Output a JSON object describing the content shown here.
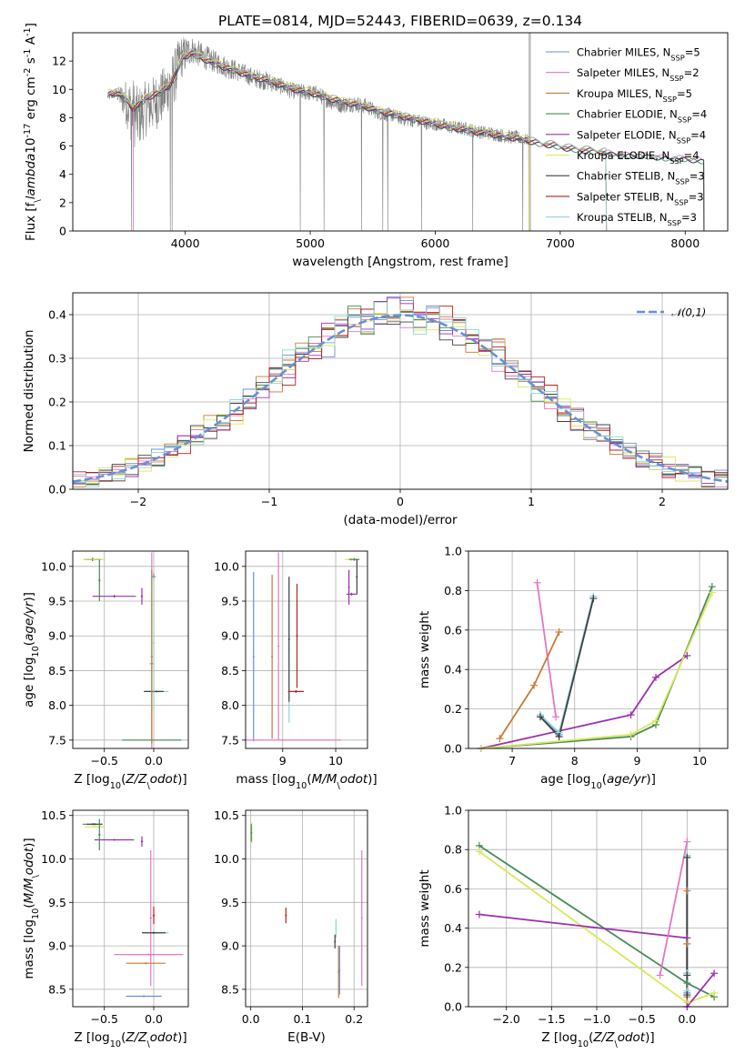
{
  "chart_data": [
    {
      "id": "spectrum",
      "type": "line",
      "title": "PLATE=0814, MJD=52443, FIBERID=0639, z=0.134",
      "xlabel": "wavelength [Angstrom, rest frame]",
      "ylabel": "Flux [f$_\\lambda$10$^{-17}$ erg cm$^{-2}$ s$^{-1}$ A$^{-1}$]",
      "xlim": [
        3100,
        8340
      ],
      "ylim": [
        0,
        14
      ],
      "xticks": [
        4000,
        5000,
        6000,
        7000,
        8000
      ],
      "yticks": [
        0,
        2,
        4,
        6,
        8,
        10,
        12
      ],
      "grid": false,
      "legend_position": "upper right",
      "observed": {
        "color": "#808080",
        "x": [
          3380,
          3450,
          3520,
          3580,
          3620,
          3680,
          3750,
          3820,
          3880,
          3920,
          3960,
          4050,
          4150,
          4250,
          4350,
          4450,
          4550,
          4650,
          4750,
          4850,
          4950,
          5050,
          5150,
          5250,
          5350,
          5450,
          5550,
          5650,
          5750,
          5850,
          5950,
          6050,
          6150,
          6250,
          6350,
          6450,
          6550,
          6650,
          6750
        ],
        "y": [
          9.5,
          9.7,
          9.2,
          8.4,
          8.0,
          8.6,
          9.0,
          9.5,
          10.5,
          11.0,
          12.2,
          12.8,
          12.3,
          11.9,
          11.5,
          11.2,
          10.8,
          10.6,
          10.3,
          9.9,
          9.8,
          9.7,
          9.2,
          8.9,
          9.0,
          8.8,
          8.3,
          8.2,
          7.9,
          7.8,
          7.6,
          7.5,
          7.3,
          7.2,
          7.0,
          6.9,
          6.7,
          6.6,
          6.4
        ],
        "noise": [
          0.35,
          0.35,
          1.5,
          2.5,
          2.2,
          2.0,
          2.0,
          2.0,
          1.8,
          2.0,
          1.6,
          1.0,
          0.9,
          0.8,
          0.8,
          0.7,
          0.7,
          0.7,
          0.6,
          0.6,
          0.6,
          0.6,
          0.6,
          0.6,
          0.6,
          0.6,
          0.5,
          0.5,
          0.5,
          0.5,
          0.5,
          0.5,
          0.5,
          0.5,
          0.5,
          0.5,
          0.5,
          0.5,
          0.4
        ],
        "drops": [
          3570,
          3880,
          3895,
          4920,
          5110,
          5410,
          5580,
          5620,
          5890,
          6300,
          6700
        ],
        "spike_x": 6750
      },
      "model_x": [
        3380,
        3450,
        3520,
        3580,
        3620,
        3700,
        3800,
        3880,
        3930,
        3980,
        4050,
        4150,
        4250,
        4350,
        4450,
        4550,
        4650,
        4750,
        4850,
        4950,
        5050,
        5150,
        5250,
        5350,
        5450,
        5550,
        5650,
        5750,
        5850,
        5950,
        6050,
        6150,
        6250,
        6350,
        6450,
        6550,
        6650,
        6750,
        6850,
        6950,
        7050,
        7150,
        7250,
        7350,
        7450,
        7550,
        7650,
        7750,
        7850,
        7950,
        8050,
        8150
      ],
      "model_y": [
        9.7,
        9.8,
        9.4,
        8.7,
        8.9,
        9.5,
        9.8,
        10.4,
        11.3,
        12.3,
        12.6,
        12.2,
        11.8,
        11.5,
        11.2,
        10.9,
        10.7,
        10.4,
        10.1,
        9.9,
        9.7,
        9.4,
        9.2,
        9.0,
        8.8,
        8.5,
        8.3,
        8.1,
        7.9,
        7.7,
        7.5,
        7.3,
        7.2,
        7.0,
        6.9,
        6.7,
        6.6,
        6.4,
        6.2,
        6.1,
        5.9,
        5.8,
        5.7,
        5.6,
        5.5,
        5.4,
        5.4,
        5.3,
        5.2,
        5.2,
        5.1,
        5.0
      ],
      "model_end_x": [
        8150,
        8150,
        7370,
        8150,
        6750,
        6750,
        8150,
        7370,
        7370
      ],
      "series": [
        {
          "name": "Chabrier MILES, N$_{SSP}$=5",
          "color": "#6b8fd6"
        },
        {
          "name": "Salpeter MILES, N$_{SSP}$=2",
          "color": "#e377c2"
        },
        {
          "name": "Kroupa MILES, N$_{SSP}$=5",
          "color": "#c87a34"
        },
        {
          "name": "Chabrier ELODIE, N$_{SSP}$=4",
          "color": "#4a8a5a"
        },
        {
          "name": "Salpeter ELODIE, N$_{SSP}$=4",
          "color": "#9b30b0"
        },
        {
          "name": "Kroupa ELODIE, N$_{SSP}$=4",
          "color": "#d9e85a"
        },
        {
          "name": "Chabrier STELIB, N$_{SSP}$=3",
          "color": "#404040"
        },
        {
          "name": "Salpeter STELIB, N$_{SSP}$=3",
          "color": "#b22222"
        },
        {
          "name": "Kroupa STELIB, N$_{SSP}$=3",
          "color": "#8fd6d9"
        }
      ]
    },
    {
      "id": "residuals",
      "type": "line",
      "xlabel": "(data-model)/error",
      "ylabel": "Normed distribution",
      "xlim": [
        -2.5,
        2.5
      ],
      "ylim": [
        0,
        0.45
      ],
      "xticks": [
        -2,
        -1,
        0,
        1,
        2
      ],
      "yticks": [
        0.0,
        0.1,
        0.2,
        0.3,
        0.4
      ],
      "grid": true,
      "legend_position": "upper right",
      "gaussian": {
        "name": "$\\mathcal{N}(0,1)$",
        "color": "#6a8fd8"
      },
      "bin_width": 0.1
    },
    {
      "id": "age-Z",
      "type": "scatter",
      "xlabel": "Z [log$_{10}$($Z/Z_\\odot$)]",
      "ylabel": "age  [log$_{10}$($age/yr$)]",
      "xlim": [
        -0.82,
        0.35
      ],
      "ylim": [
        7.38,
        10.22
      ],
      "xticks": [
        -0.5,
        0.0
      ],
      "yticks": [
        7.5,
        8.0,
        8.5,
        9.0,
        9.5,
        10.0
      ],
      "grid": true,
      "points": [
        {
          "s": 3,
          "x": -0.02,
          "y": 7.5,
          "xerr": 0.3,
          "yerr": 0.02
        },
        {
          "s": 1,
          "x": -0.02,
          "y": 8.6,
          "xerr": 0.02,
          "yerr": 1.6
        },
        {
          "s": 0,
          "x": 0.0,
          "y": 9.85,
          "xerr": 0.02,
          "yerr": 0.05
        },
        {
          "s": 3,
          "x": -0.62,
          "y": 10.1,
          "xerr": 0.09,
          "yerr": 0.02
        },
        {
          "s": 6,
          "x": -0.62,
          "y": 10.1,
          "xerr": 0.06,
          "yerr": 0.02
        },
        {
          "s": 5,
          "x": -0.6,
          "y": 10.1,
          "xerr": 0.11,
          "yerr": 0.02
        },
        {
          "s": 4,
          "x": -0.4,
          "y": 9.57,
          "xerr": 0.22,
          "yerr": 0.02
        },
        {
          "s": 4,
          "x": -0.12,
          "y": 9.57,
          "xerr": 0.01,
          "yerr": 0.12
        },
        {
          "s": 3,
          "x": -0.55,
          "y": 9.8,
          "xerr": 0.01,
          "yerr": 0.3
        },
        {
          "s": 8,
          "x": 0.03,
          "y": 8.2,
          "xerr": 0.12,
          "yerr": 0.02
        },
        {
          "s": 6,
          "x": 0.0,
          "y": 8.2,
          "xerr": 0.1,
          "yerr": 0.02
        },
        {
          "s": 8,
          "x": 0.0,
          "y": 8.9,
          "xerr": 0.01,
          "yerr": 0.95
        },
        {
          "s": 2,
          "x": -0.02,
          "y": 8.7,
          "xerr": 0.01,
          "yerr": 1.25
        }
      ]
    },
    {
      "id": "age-mass",
      "type": "scatter",
      "xlabel": "mass [log$_{10}$($M/M_\\odot$)]",
      "ylabel": "",
      "xlim": [
        8.3,
        10.6
      ],
      "ylim": [
        7.38,
        10.22
      ],
      "xticks": [
        9,
        10
      ],
      "yticks": [
        7.5,
        8.0,
        8.5,
        9.0,
        9.5,
        10.0
      ],
      "grid": true,
      "points": [
        {
          "s": 0,
          "x": 8.45,
          "y": 8.7,
          "xerr": 0.01,
          "yerr": 1.22
        },
        {
          "s": 2,
          "x": 8.8,
          "y": 8.7,
          "xerr": 0.01,
          "yerr": 1.18
        },
        {
          "s": 1,
          "x": 8.92,
          "y": 8.85,
          "xerr": 0.01,
          "yerr": 1.35
        },
        {
          "s": 8,
          "x": 9.12,
          "y": 8.8,
          "xerr": 0.01,
          "yerr": 1.05
        },
        {
          "s": 6,
          "x": 9.12,
          "y": 8.95,
          "xerr": 0.01,
          "yerr": 0.9
        },
        {
          "s": 7,
          "x": 9.25,
          "y": 8.2,
          "xerr": 0.15,
          "yerr": 0.02
        },
        {
          "s": 7,
          "x": 9.27,
          "y": 9.0,
          "xerr": 0.01,
          "yerr": 0.75
        },
        {
          "s": 5,
          "x": 10.3,
          "y": 10.1,
          "xerr": 0.13,
          "yerr": 0.02
        },
        {
          "s": 3,
          "x": 10.35,
          "y": 10.1,
          "xerr": 0.1,
          "yerr": 0.02
        },
        {
          "s": 6,
          "x": 10.4,
          "y": 9.85,
          "xerr": 0.01,
          "yerr": 0.25
        },
        {
          "s": 4,
          "x": 10.3,
          "y": 9.6,
          "xerr": 0.1,
          "yerr": 0.02
        },
        {
          "s": 4,
          "x": 10.25,
          "y": 9.7,
          "xerr": 0.01,
          "yerr": 0.25
        },
        {
          "s": 1,
          "x": 9.0,
          "y": 7.5,
          "xerr": 1.1,
          "yerr": 0.01
        }
      ]
    },
    {
      "id": "weight-age",
      "type": "line",
      "xlabel": "age  [log$_{10}$($age/yr$)]",
      "ylabel": "mass weight",
      "xlim": [
        6.3,
        10.45
      ],
      "ylim": [
        0,
        1
      ],
      "xticks": [
        7,
        8,
        9,
        10
      ],
      "yticks": [
        0.0,
        0.2,
        0.4,
        0.6,
        0.8,
        1.0
      ],
      "grid": true,
      "lines": [
        {
          "s": 0,
          "x": [
            7.45,
            7.75,
            8.3
          ],
          "y": [
            0.17,
            0.07,
            0.77
          ]
        },
        {
          "s": 1,
          "x": [
            7.4,
            7.7
          ],
          "y": [
            0.84,
            0.16
          ]
        },
        {
          "s": 2,
          "x": [
            6.8,
            7.35,
            7.75
          ],
          "y": [
            0.05,
            0.32,
            0.59
          ]
        },
        {
          "s": 3,
          "x": [
            6.5,
            8.9,
            9.3,
            10.2
          ],
          "y": [
            0.0,
            0.06,
            0.12,
            0.82
          ]
        },
        {
          "s": 4,
          "x": [
            6.5,
            8.9,
            9.3,
            9.8
          ],
          "y": [
            0.0,
            0.17,
            0.36,
            0.47
          ]
        },
        {
          "s": 5,
          "x": [
            6.5,
            8.9,
            9.3,
            10.2
          ],
          "y": [
            0.0,
            0.07,
            0.14,
            0.79
          ]
        },
        {
          "s": 8,
          "x": [
            7.45,
            7.75,
            8.3
          ],
          "y": [
            0.17,
            0.08,
            0.77
          ]
        },
        {
          "s": 6,
          "x": [
            7.45,
            7.75,
            8.3
          ],
          "y": [
            0.16,
            0.06,
            0.76
          ]
        }
      ]
    },
    {
      "id": "mass-Z",
      "type": "scatter",
      "xlabel": "Z [log$_{10}$($Z/Z_\\odot$)]",
      "ylabel": "mass [log$_{10}$($M/M_\\odot$)]",
      "xlim": [
        -0.82,
        0.35
      ],
      "ylim": [
        8.3,
        10.56
      ],
      "xticks": [
        -0.5,
        0.0
      ],
      "yticks": [
        8.5,
        9.0,
        9.5,
        10.0,
        10.5
      ],
      "grid": true,
      "points": [
        {
          "s": 0,
          "x": -0.1,
          "y": 8.42,
          "xerr": 0.18,
          "yerr": 0.01
        },
        {
          "s": 2,
          "x": -0.08,
          "y": 8.8,
          "xerr": 0.2,
          "yerr": 0.01
        },
        {
          "s": 1,
          "x": -0.05,
          "y": 8.9,
          "xerr": 0.35,
          "yerr": 0.01
        },
        {
          "s": 1,
          "x": -0.03,
          "y": 9.32,
          "xerr": 0.01,
          "yerr": 0.78
        },
        {
          "s": 7,
          "x": 0.0,
          "y": 9.35,
          "xerr": 0.01,
          "yerr": 0.1
        },
        {
          "s": 8,
          "x": 0.03,
          "y": 9.15,
          "xerr": 0.12,
          "yerr": 0.01
        },
        {
          "s": 6,
          "x": 0.0,
          "y": 9.15,
          "xerr": 0.12,
          "yerr": 0.01
        },
        {
          "s": 3,
          "x": -0.62,
          "y": 10.4,
          "xerr": 0.1,
          "yerr": 0.01
        },
        {
          "s": 6,
          "x": -0.6,
          "y": 10.4,
          "xerr": 0.08,
          "yerr": 0.01
        },
        {
          "s": 5,
          "x": -0.6,
          "y": 10.37,
          "xerr": 0.1,
          "yerr": 0.01
        },
        {
          "s": 4,
          "x": -0.4,
          "y": 10.22,
          "xerr": 0.2,
          "yerr": 0.01
        },
        {
          "s": 4,
          "x": -0.12,
          "y": 10.2,
          "xerr": 0.01,
          "yerr": 0.06
        },
        {
          "s": 3,
          "x": -0.55,
          "y": 10.28,
          "xerr": 0.01,
          "yerr": 0.18
        }
      ]
    },
    {
      "id": "mass-ebv",
      "type": "scatter",
      "xlabel": "E(B-V)",
      "ylabel": "",
      "xlim": [
        -0.01,
        0.226
      ],
      "ylim": [
        8.3,
        10.56
      ],
      "xticks": [
        0.0,
        0.1,
        0.2
      ],
      "yticks": [
        8.5,
        9.0,
        9.5,
        10.0,
        10.5
      ],
      "grid": true,
      "points": [
        {
          "s": 5,
          "x": 0.002,
          "y": 10.3,
          "xerr": 0.0,
          "yerr": 0.12
        },
        {
          "s": 3,
          "x": 0.001,
          "y": 10.3,
          "xerr": 0.0,
          "yerr": 0.1
        },
        {
          "s": 7,
          "x": 0.068,
          "y": 9.35,
          "xerr": 0.0,
          "yerr": 0.09
        },
        {
          "s": 8,
          "x": 0.165,
          "y": 9.2,
          "xerr": 0.0,
          "yerr": 0.11
        },
        {
          "s": 6,
          "x": 0.163,
          "y": 9.05,
          "xerr": 0.0,
          "yerr": 0.08
        },
        {
          "s": 2,
          "x": 0.17,
          "y": 8.7,
          "xerr": 0.0,
          "yerr": 0.3
        },
        {
          "s": 0,
          "x": 0.172,
          "y": 8.72,
          "xerr": 0.0,
          "yerr": 0.28
        },
        {
          "s": 1,
          "x": 0.215,
          "y": 9.32,
          "xerr": 0.0,
          "yerr": 0.78
        }
      ]
    },
    {
      "id": "weight-Z",
      "type": "line",
      "xlabel": "Z [log$_{10}$($Z/Z_\\odot$)]",
      "ylabel": "mass weight",
      "xlim": [
        -2.42,
        0.45
      ],
      "ylim": [
        0,
        1
      ],
      "xticks": [
        -2.0,
        -1.5,
        -1.0,
        -0.5,
        0.0
      ],
      "yticks": [
        0.0,
        0.2,
        0.4,
        0.6,
        0.8,
        1.0
      ],
      "grid": true,
      "lines": [
        {
          "s": 3,
          "x": [
            -2.3,
            0.0,
            0.3
          ],
          "y": [
            0.82,
            0.12,
            0.05
          ]
        },
        {
          "s": 5,
          "x": [
            -2.3,
            0.0,
            0.3
          ],
          "y": [
            0.79,
            0.02,
            0.07
          ]
        },
        {
          "s": 4,
          "x": [
            -2.3,
            0.0,
            0.0,
            0.3
          ],
          "y": [
            0.47,
            0.35,
            0.0,
            0.17
          ]
        },
        {
          "s": 1,
          "x": [
            -0.3,
            0.0
          ],
          "y": [
            0.16,
            0.84
          ]
        },
        {
          "s": 2,
          "x": [
            0.0,
            0.0,
            0.0
          ],
          "y": [
            0.05,
            0.32,
            0.59
          ]
        },
        {
          "s": 0,
          "x": [
            0.0,
            0.0,
            0.0
          ],
          "y": [
            0.07,
            0.17,
            0.77
          ]
        },
        {
          "s": 8,
          "x": [
            0.0,
            0.0,
            0.0
          ],
          "y": [
            0.08,
            0.17,
            0.77
          ]
        },
        {
          "s": 6,
          "x": [
            0.0,
            0.0,
            0.0
          ],
          "y": [
            0.06,
            0.16,
            0.76
          ]
        }
      ]
    }
  ]
}
